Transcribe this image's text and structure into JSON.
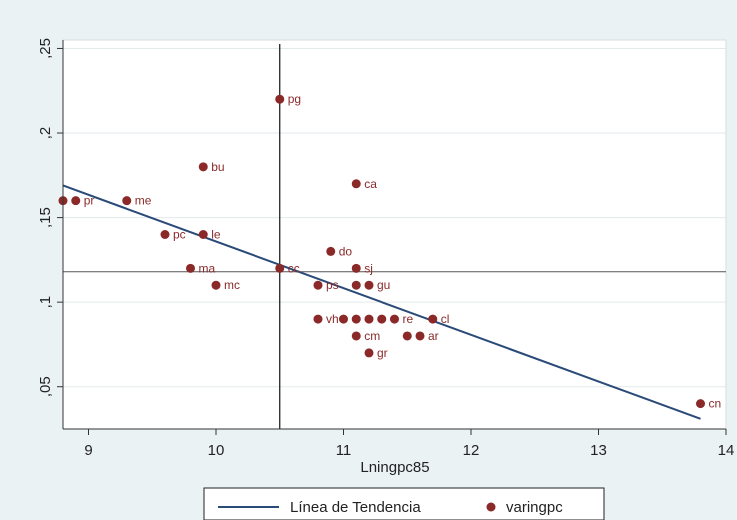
{
  "chart_data": {
    "type": "scatter",
    "xlabel": "Lningpc85",
    "ylabel": "",
    "xlim": [
      8.8,
      14.0
    ],
    "ylim": [
      0.025,
      0.255
    ],
    "x_ticks": [
      "9",
      "10",
      "11",
      "12",
      "13",
      "14"
    ],
    "y_ticks": [
      ",05",
      ",1",
      ",15",
      ",2",
      ",25"
    ],
    "grid": "horizontal",
    "legend": {
      "position": "bottom",
      "items": [
        {
          "label": "Línea de Tendencia",
          "color": "#2a4a78",
          "marker": "line"
        },
        {
          "label": "varingpc",
          "color": "#8b2828",
          "marker": "dot"
        }
      ]
    },
    "trend_line": {
      "name": "Línea de Tendencia",
      "x": [
        8.8,
        13.8
      ],
      "y": [
        0.169,
        0.031
      ],
      "color": "#2a4a78"
    },
    "reference_lines": {
      "x": 10.5,
      "y": 0.118
    },
    "series": [
      {
        "name": "varingpc",
        "color": "#8b2828",
        "points": [
          {
            "label": "pg",
            "x": 10.5,
            "y": 0.22
          },
          {
            "label": "bu",
            "x": 9.9,
            "y": 0.18
          },
          {
            "label": "ca",
            "x": 11.1,
            "y": 0.17
          },
          {
            "label": "",
            "x": 8.8,
            "y": 0.16
          },
          {
            "label": "pr",
            "x": 8.9,
            "y": 0.16
          },
          {
            "label": "me",
            "x": 9.3,
            "y": 0.16
          },
          {
            "label": "pc",
            "x": 9.6,
            "y": 0.14
          },
          {
            "label": "le",
            "x": 9.9,
            "y": 0.14
          },
          {
            "label": "do",
            "x": 10.9,
            "y": 0.13
          },
          {
            "label": "ma",
            "x": 9.8,
            "y": 0.12
          },
          {
            "label": "cc",
            "x": 10.5,
            "y": 0.12
          },
          {
            "label": "sj",
            "x": 11.1,
            "y": 0.12
          },
          {
            "label": "mc",
            "x": 10.0,
            "y": 0.11
          },
          {
            "label": "ps",
            "x": 10.8,
            "y": 0.11
          },
          {
            "label": "",
            "x": 11.1,
            "y": 0.11
          },
          {
            "label": "gu",
            "x": 11.2,
            "y": 0.11
          },
          {
            "label": "vh",
            "x": 10.8,
            "y": 0.09
          },
          {
            "label": "",
            "x": 11.0,
            "y": 0.09
          },
          {
            "label": "",
            "x": 11.1,
            "y": 0.09
          },
          {
            "label": "",
            "x": 11.2,
            "y": 0.09
          },
          {
            "label": "",
            "x": 11.3,
            "y": 0.09
          },
          {
            "label": "re",
            "x": 11.4,
            "y": 0.09
          },
          {
            "label": "cl",
            "x": 11.7,
            "y": 0.09
          },
          {
            "label": "cm",
            "x": 11.1,
            "y": 0.08
          },
          {
            "label": "",
            "x": 11.5,
            "y": 0.08
          },
          {
            "label": "ar",
            "x": 11.6,
            "y": 0.08
          },
          {
            "label": "gr",
            "x": 11.2,
            "y": 0.07
          },
          {
            "label": "cn",
            "x": 13.8,
            "y": 0.04
          }
        ]
      }
    ]
  }
}
